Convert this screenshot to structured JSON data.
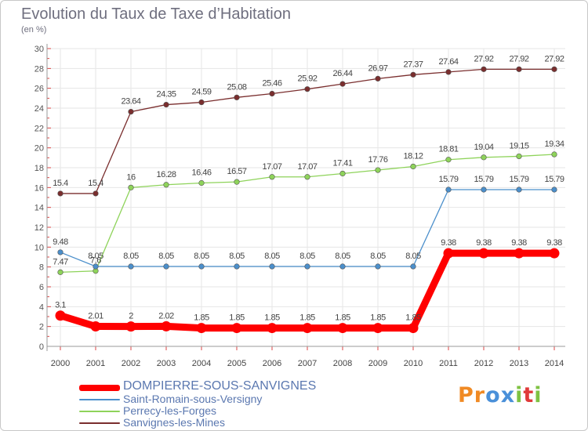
{
  "title": "Evolution du Taux de Taxe d’Habitation",
  "subtitle": "(en %)",
  "logo": {
    "text": "Proxiti",
    "letter_colors": [
      "#f08a24",
      "#f08a24",
      "#4a90d9",
      "#4a90d9",
      "#7fc243",
      "#e03a3a",
      "#7fc243"
    ]
  },
  "chart_data": {
    "type": "line",
    "title": "Evolution du Taux de Taxe d’Habitation",
    "ylabel": "(en %)",
    "xlabel": "",
    "x": [
      2000,
      2001,
      2002,
      2003,
      2004,
      2005,
      2006,
      2007,
      2008,
      2009,
      2010,
      2011,
      2012,
      2013,
      2014
    ],
    "ylim": [
      0,
      30
    ],
    "yticks": [
      0,
      2,
      4,
      6,
      8,
      10,
      12,
      14,
      16,
      18,
      20,
      22,
      24,
      26,
      28,
      30
    ],
    "grid": true,
    "legend_position": "bottom-left",
    "series": [
      {
        "name": "DOMPIERRE-SOUS-SANVIGNES",
        "color": "#ff0000",
        "emphasis": true,
        "values": [
          3.1,
          2.01,
          2,
          2.02,
          1.85,
          1.85,
          1.85,
          1.85,
          1.85,
          1.85,
          1.85,
          9.38,
          9.38,
          9.38,
          9.38
        ],
        "labels": [
          "3.1",
          "2.01",
          "2",
          "2.02",
          "1.85",
          "1.85",
          "1.85",
          "1.85",
          "1.85",
          "1.85",
          "1.85",
          "9.38",
          "9.38",
          "9.38",
          "9.38"
        ]
      },
      {
        "name": "Saint-Romain-sous-Versigny",
        "color": "#4b8fcb",
        "values": [
          9.48,
          8.05,
          8.05,
          8.05,
          8.05,
          8.05,
          8.05,
          8.05,
          8.05,
          8.05,
          8.05,
          15.79,
          15.79,
          15.79,
          15.79
        ],
        "labels": [
          "9.48",
          "8.05",
          "8.05",
          "8.05",
          "8.05",
          "8.05",
          "8.05",
          "8.05",
          "8.05",
          "8.05",
          "8.05",
          "15.79",
          "15.79",
          "15.79",
          "15.79"
        ]
      },
      {
        "name": "Perrecy-les-Forges",
        "color": "#8ed35a",
        "values": [
          7.47,
          7.6,
          16,
          16.28,
          16.46,
          16.57,
          17.07,
          17.07,
          17.41,
          17.76,
          18.12,
          18.81,
          19.04,
          19.15,
          19.34
        ],
        "labels": [
          "7.47",
          "7.6",
          "16",
          "16.28",
          "16.46",
          "16.57",
          "17.07",
          "17.07",
          "17.41",
          "17.76",
          "18.12",
          "18.81",
          "19.04",
          "19.15",
          "19.34"
        ]
      },
      {
        "name": "Sanvignes-les-Mines",
        "color": "#7a2e2e",
        "values": [
          15.4,
          15.4,
          23.64,
          24.35,
          24.59,
          25.08,
          25.46,
          25.92,
          26.44,
          26.97,
          27.37,
          27.64,
          27.92,
          27.92,
          27.92
        ],
        "labels": [
          "15.4",
          "15.4",
          "23.64",
          "24.35",
          "24.59",
          "25.08",
          "25.46",
          "25.92",
          "26.44",
          "26.97",
          "27.37",
          "27.64",
          "27.92",
          "27.92",
          "27.92"
        ]
      }
    ]
  }
}
